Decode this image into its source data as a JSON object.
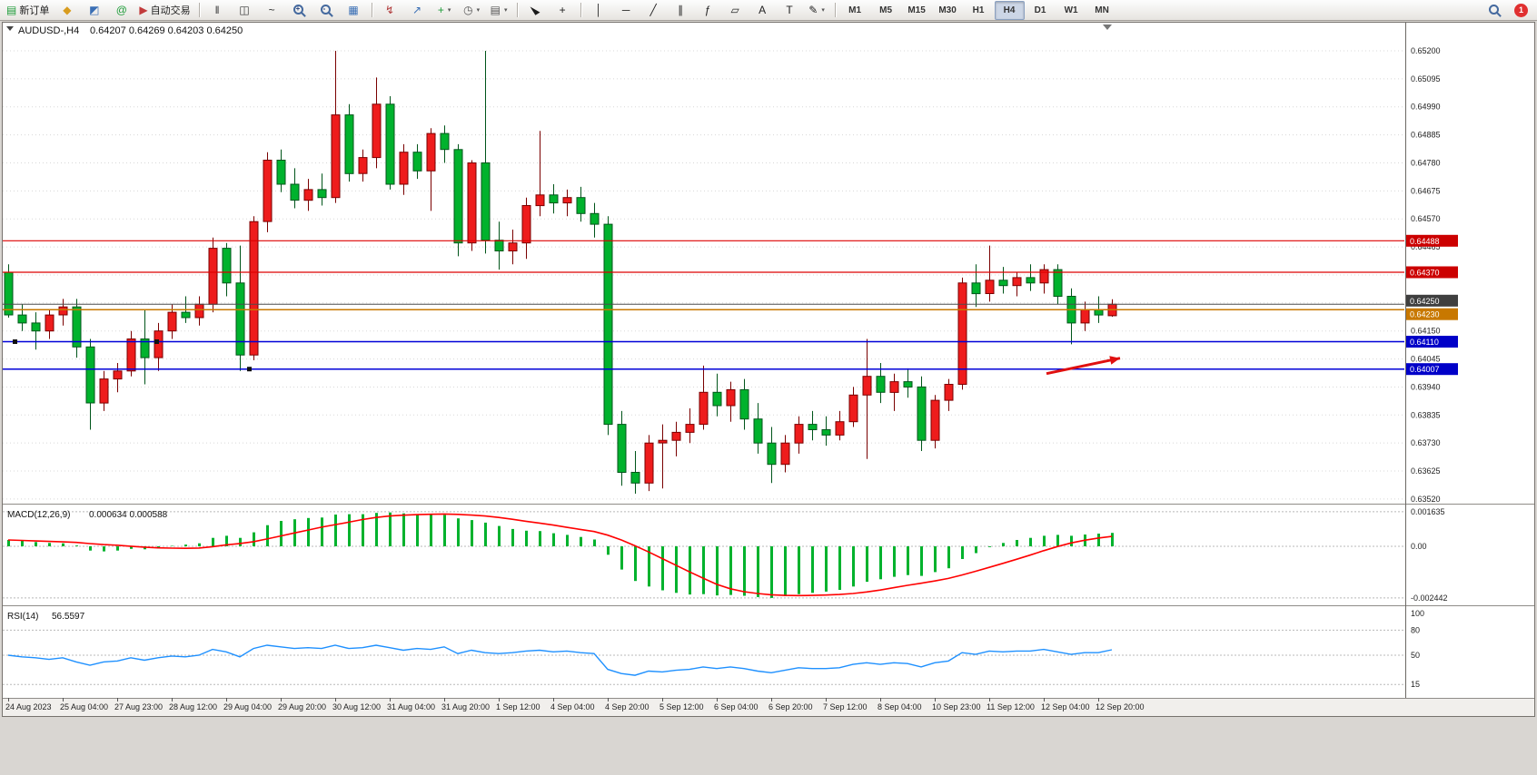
{
  "toolbar": {
    "dropdown_glyph": "▾",
    "groups": [
      {
        "items": [
          {
            "name": "new-order-button",
            "type": "labeled",
            "icon_name": "new-order-icon",
            "glyph": "▤",
            "glyph_color": "#1f9d3a",
            "label": "新订单"
          },
          {
            "name": "market-watch-icon",
            "type": "glyph",
            "glyph": "◆",
            "color": "#d89c1e"
          },
          {
            "name": "data-window-icon",
            "type": "glyph",
            "glyph": "◩",
            "color": "#3a6fb5"
          },
          {
            "name": "community-icon",
            "type": "glyph",
            "glyph": "@",
            "color": "#1f9d3a"
          },
          {
            "name": "autotrading-button",
            "type": "labeled",
            "icon_name": "autotrading-icon",
            "glyph": "▶",
            "glyph_color": "#c23b3b",
            "label": "自动交易"
          }
        ]
      },
      {
        "items": [
          {
            "name": "bar-chart-icon",
            "type": "glyph",
            "glyph": "‖",
            "color": "#333333"
          },
          {
            "name": "candlestick-chart-icon",
            "type": "glyph",
            "glyph": "◫",
            "color": "#333333"
          },
          {
            "name": "line-chart-icon",
            "type": "glyph",
            "glyph": "~",
            "color": "#333333"
          },
          {
            "name": "zoom-in-icon",
            "type": "mag",
            "badge": "+"
          },
          {
            "name": "zoom-out-icon",
            "type": "mag",
            "badge": "-"
          },
          {
            "name": "tile-windows-icon",
            "type": "glyph",
            "glyph": "▦",
            "color": "#3a6fb5"
          }
        ]
      },
      {
        "items": [
          {
            "name": "indicators-icon",
            "type": "glyph",
            "glyph": "↯",
            "color": "#b03a3a"
          },
          {
            "name": "objects-list-icon",
            "type": "glyph",
            "glyph": "↗",
            "color": "#3a6fb5"
          },
          {
            "name": "add-indicator-dropdown",
            "type": "glyph",
            "glyph": "+",
            "color": "#1f9d3a",
            "dropdown": true
          },
          {
            "name": "periods-dropdown",
            "type": "glyph",
            "glyph": "◷",
            "color": "#555555",
            "dropdown": true
          },
          {
            "name": "templates-dropdown",
            "type": "glyph",
            "glyph": "▤",
            "color": "#555555",
            "dropdown": true
          }
        ]
      },
      {
        "items": [
          {
            "name": "cursor-icon",
            "type": "cursor"
          },
          {
            "name": "crosshair-icon",
            "type": "glyph",
            "glyph": "+",
            "color": "#222222"
          }
        ]
      },
      {
        "items": [
          {
            "name": "vertical-line-icon",
            "type": "glyph",
            "glyph": "│",
            "color": "#222222"
          },
          {
            "name": "horizontal-line-icon",
            "type": "glyph",
            "glyph": "─",
            "color": "#222222"
          },
          {
            "name": "trendline-icon",
            "type": "glyph",
            "glyph": "╱",
            "color": "#222222"
          },
          {
            "name": "channel-icon",
            "type": "glyph",
            "glyph": "∥",
            "color": "#222222"
          },
          {
            "name": "fibonacci-icon",
            "type": "glyph",
            "glyph": "ƒ",
            "color": "#222222"
          },
          {
            "name": "shapes-icon",
            "type": "glyph",
            "glyph": "▱",
            "color": "#222222"
          },
          {
            "name": "text-icon",
            "type": "glyph",
            "glyph": "A",
            "color": "#222222"
          },
          {
            "name": "text-label-icon",
            "type": "glyph",
            "glyph": "T",
            "color": "#222222"
          },
          {
            "name": "arrows-tool-dropdown",
            "type": "glyph",
            "glyph": "✎",
            "color": "#222222",
            "dropdown": true
          }
        ]
      },
      {
        "items": [
          {
            "name": "tf-button-m1",
            "type": "tf",
            "label": "M1"
          },
          {
            "name": "tf-button-m5",
            "type": "tf",
            "label": "M5"
          },
          {
            "name": "tf-button-m15",
            "type": "tf",
            "label": "M15"
          },
          {
            "name": "tf-button-m30",
            "type": "tf",
            "label": "M30"
          },
          {
            "name": "tf-button-h1",
            "type": "tf",
            "label": "H1"
          },
          {
            "name": "tf-button-h4",
            "type": "tf",
            "label": "H4",
            "active": true
          },
          {
            "name": "tf-button-d1",
            "type": "tf",
            "label": "D1"
          },
          {
            "name": "tf-button-w1",
            "type": "tf",
            "label": "W1"
          },
          {
            "name": "tf-button-mn",
            "type": "tf",
            "label": "MN"
          }
        ]
      }
    ],
    "right": [
      {
        "name": "search-icon",
        "type": "mag",
        "badge": ""
      },
      {
        "name": "notifications-badge",
        "type": "badge",
        "label": "1",
        "bg": "#e03030"
      }
    ]
  },
  "chart_data": {
    "type": "candlestick",
    "symbol_period": "AUDUSD-,H4",
    "title_ohlc": "0.64207 0.64269 0.64203 0.64250",
    "ohlc_display": {
      "open": "0.64207",
      "high": "0.64269",
      "low": "0.64203",
      "close": "0.64250"
    },
    "price_axis_labels": [
      "0.65200",
      "0.65095",
      "0.64990",
      "0.64885",
      "0.64780",
      "0.64675",
      "0.64570",
      "0.64465",
      "0.64360",
      "0.64255",
      "0.64150",
      "0.64045",
      "0.63940",
      "0.63835",
      "0.63730",
      "0.63625",
      "0.63520"
    ],
    "time_labels": [
      "24 Aug 2023",
      "25 Aug 04:00",
      "27 Aug 23:00",
      "28 Aug 12:00",
      "29 Aug 04:00",
      "29 Aug 20:00",
      "30 Aug 12:00",
      "31 Aug 04:00",
      "31 Aug 20:00",
      "1 Sep 12:00",
      "4 Sep 04:00",
      "4 Sep 20:00",
      "5 Sep 12:00",
      "6 Sep 04:00",
      "6 Sep 20:00",
      "7 Sep 12:00",
      "8 Sep 04:00",
      "10 Sep 23:00",
      "11 Sep 12:00",
      "12 Sep 04:00",
      "12 Sep 20:00"
    ],
    "label_every_n_candles": 4,
    "candles_ohlc": [
      [
        0.6437,
        0.644,
        0.642,
        0.6421
      ],
      [
        0.6421,
        0.6425,
        0.6415,
        0.6418
      ],
      [
        0.6418,
        0.6422,
        0.6408,
        0.6415
      ],
      [
        0.6415,
        0.6423,
        0.6412,
        0.6421
      ],
      [
        0.6421,
        0.6427,
        0.6417,
        0.6424
      ],
      [
        0.6424,
        0.6427,
        0.6405,
        0.6409
      ],
      [
        0.6409,
        0.6412,
        0.6378,
        0.6388
      ],
      [
        0.6388,
        0.64,
        0.6385,
        0.6397
      ],
      [
        0.6397,
        0.6403,
        0.6392,
        0.64
      ],
      [
        0.64,
        0.6415,
        0.6398,
        0.6412
      ],
      [
        0.6412,
        0.6423,
        0.6395,
        0.6405
      ],
      [
        0.6405,
        0.6418,
        0.64,
        0.6415
      ],
      [
        0.6415,
        0.6425,
        0.6412,
        0.6422
      ],
      [
        0.6422,
        0.6428,
        0.6418,
        0.642
      ],
      [
        0.642,
        0.6428,
        0.6417,
        0.6425
      ],
      [
        0.6425,
        0.645,
        0.6422,
        0.6446
      ],
      [
        0.6446,
        0.6448,
        0.6428,
        0.6433
      ],
      [
        0.6433,
        0.6447,
        0.64,
        0.6406
      ],
      [
        0.6406,
        0.6458,
        0.6404,
        0.6456
      ],
      [
        0.6456,
        0.6482,
        0.6452,
        0.6479
      ],
      [
        0.6479,
        0.6483,
        0.6467,
        0.647
      ],
      [
        0.647,
        0.6476,
        0.6461,
        0.6464
      ],
      [
        0.6464,
        0.6472,
        0.646,
        0.6468
      ],
      [
        0.6468,
        0.6474,
        0.6462,
        0.6465
      ],
      [
        0.6465,
        0.652,
        0.6463,
        0.6496
      ],
      [
        0.6496,
        0.65,
        0.6471,
        0.6474
      ],
      [
        0.6474,
        0.6483,
        0.6471,
        0.648
      ],
      [
        0.648,
        0.651,
        0.6476,
        0.65
      ],
      [
        0.65,
        0.6503,
        0.6468,
        0.647
      ],
      [
        0.647,
        0.6485,
        0.6466,
        0.6482
      ],
      [
        0.6482,
        0.6485,
        0.6472,
        0.6475
      ],
      [
        0.6475,
        0.6491,
        0.646,
        0.6489
      ],
      [
        0.6489,
        0.6492,
        0.6478,
        0.6483
      ],
      [
        0.6483,
        0.6485,
        0.6443,
        0.6448
      ],
      [
        0.6448,
        0.6479,
        0.6445,
        0.6478
      ],
      [
        0.6478,
        0.652,
        0.6444,
        0.6449
      ],
      [
        0.6449,
        0.6456,
        0.6438,
        0.6445
      ],
      [
        0.6445,
        0.6453,
        0.644,
        0.6448
      ],
      [
        0.6448,
        0.6465,
        0.6442,
        0.6462
      ],
      [
        0.6462,
        0.649,
        0.6458,
        0.6466
      ],
      [
        0.6466,
        0.647,
        0.6459,
        0.6463
      ],
      [
        0.6463,
        0.6468,
        0.6458,
        0.6465
      ],
      [
        0.6465,
        0.6469,
        0.6456,
        0.6459
      ],
      [
        0.6459,
        0.6463,
        0.645,
        0.6455
      ],
      [
        0.6455,
        0.6458,
        0.6376,
        0.638
      ],
      [
        0.638,
        0.6385,
        0.6357,
        0.6362
      ],
      [
        0.6362,
        0.637,
        0.6354,
        0.6358
      ],
      [
        0.6358,
        0.6376,
        0.6355,
        0.6373
      ],
      [
        0.6373,
        0.638,
        0.6356,
        0.6374
      ],
      [
        0.6374,
        0.6381,
        0.6368,
        0.6377
      ],
      [
        0.6377,
        0.6386,
        0.6373,
        0.638
      ],
      [
        0.638,
        0.6402,
        0.6378,
        0.6392
      ],
      [
        0.6392,
        0.6399,
        0.6383,
        0.6387
      ],
      [
        0.6387,
        0.6396,
        0.6381,
        0.6393
      ],
      [
        0.6393,
        0.6397,
        0.6378,
        0.6382
      ],
      [
        0.6382,
        0.6388,
        0.6369,
        0.6373
      ],
      [
        0.6373,
        0.6379,
        0.6358,
        0.6365
      ],
      [
        0.6365,
        0.6376,
        0.6362,
        0.6373
      ],
      [
        0.6373,
        0.6383,
        0.6369,
        0.638
      ],
      [
        0.638,
        0.6385,
        0.6374,
        0.6378
      ],
      [
        0.6378,
        0.6383,
        0.6372,
        0.6376
      ],
      [
        0.6376,
        0.6385,
        0.6374,
        0.6381
      ],
      [
        0.6381,
        0.6394,
        0.6379,
        0.6391
      ],
      [
        0.6391,
        0.6412,
        0.6367,
        0.6398
      ],
      [
        0.6398,
        0.6403,
        0.6388,
        0.6392
      ],
      [
        0.6392,
        0.6399,
        0.6385,
        0.6396
      ],
      [
        0.6396,
        0.6401,
        0.639,
        0.6394
      ],
      [
        0.6394,
        0.6398,
        0.637,
        0.6374
      ],
      [
        0.6374,
        0.6391,
        0.6371,
        0.6389
      ],
      [
        0.6389,
        0.6397,
        0.6385,
        0.6395
      ],
      [
        0.6395,
        0.6435,
        0.6393,
        0.6433
      ],
      [
        0.6433,
        0.644,
        0.6424,
        0.6429
      ],
      [
        0.6429,
        0.6447,
        0.6426,
        0.6434
      ],
      [
        0.6434,
        0.6439,
        0.6429,
        0.6432
      ],
      [
        0.6432,
        0.6437,
        0.6428,
        0.6435
      ],
      [
        0.6435,
        0.644,
        0.643,
        0.6433
      ],
      [
        0.6433,
        0.644,
        0.6429,
        0.6438
      ],
      [
        0.6438,
        0.644,
        0.6425,
        0.6428
      ],
      [
        0.6428,
        0.6431,
        0.641,
        0.6418
      ],
      [
        0.6418,
        0.6426,
        0.6415,
        0.6423
      ],
      [
        0.6423,
        0.6428,
        0.6418,
        0.6421
      ],
      [
        0.64207,
        0.64269,
        0.64203,
        0.6425
      ]
    ],
    "colors": {
      "bull_fill": "#ee1c1c",
      "bull_stroke": "#7a0000",
      "bear_fill": "#00b22d",
      "bear_stroke": "#00551a",
      "macd_hist": "#00b22d",
      "macd_signal": "#ff0000",
      "rsi_line": "#1e90ff",
      "grid": "#d8d8d8",
      "resistance_line": "#dd0000",
      "support_line": "#0000d8",
      "trend_level_line": "#c87800",
      "bid_line": "#4d4d4d"
    },
    "hlines": [
      {
        "price": 0.64488,
        "color": "#dd0000",
        "width": 1.2,
        "box": "0.64488",
        "box_bg": "#cc0000",
        "box_dy": 0,
        "role": "resistance"
      },
      {
        "price": 0.6437,
        "color": "#dd0000",
        "width": 1.2,
        "box": "0.64370",
        "box_bg": "#cc0000",
        "box_dy": 0,
        "role": "resistance"
      },
      {
        "price": 0.6425,
        "color": "#4d4d4d",
        "width": 1,
        "box": "0.64250",
        "box_bg": "#3f3f3f",
        "box_dy": -4,
        "role": "bid"
      },
      {
        "price": 0.6423,
        "color": "#c87800",
        "width": 1.5,
        "box": "0.64230",
        "box_bg": "#c87800",
        "box_dy": 5,
        "role": "level"
      },
      {
        "price": 0.6411,
        "color": "#0000d8",
        "width": 1.5,
        "box": "0.64110",
        "box_bg": "#0000c8",
        "box_dy": 0,
        "role": "support",
        "handles": [
          14,
          170
        ]
      },
      {
        "price": 0.64007,
        "color": "#0000d8",
        "width": 1.5,
        "box": "0.64007",
        "box_bg": "#0000c8",
        "box_dy": 0,
        "role": "support",
        "handles": [
          272
        ]
      }
    ],
    "arrow": {
      "from_index": 76.2,
      "from_price": 0.6399,
      "to_index": 81.6,
      "to_price": 0.64048,
      "color": "#e01010"
    },
    "macd": {
      "label": "MACD(12,26,9)",
      "values_text": "0.000634 0.000588",
      "value_main": "0.000634",
      "value_signal": "0.000588",
      "axis": [
        {
          "v": 0.001635,
          "label": "0.001635"
        },
        {
          "v": 0,
          "label": "0.00"
        },
        {
          "v": -0.002442,
          "label": "-0.002442"
        }
      ],
      "hist": [
        0.0003,
        0.00026,
        0.0002,
        0.00016,
        0.00014,
        4e-05,
        -0.0002,
        -0.00024,
        -0.0002,
        -0.00012,
        -0.00014,
        -8e-05,
        2e-05,
        8e-05,
        0.00014,
        0.0004,
        0.0005,
        0.0004,
        0.00066,
        0.001,
        0.0012,
        0.00128,
        0.00134,
        0.00136,
        0.0015,
        0.00152,
        0.00152,
        0.00158,
        0.0016,
        0.00156,
        0.0015,
        0.0015,
        0.00148,
        0.00132,
        0.00124,
        0.00112,
        0.00096,
        0.00082,
        0.00074,
        0.00072,
        0.00062,
        0.00054,
        0.00044,
        0.00032,
        -0.0004,
        -0.0011,
        -0.00164,
        -0.0019,
        -0.00208,
        -0.0022,
        -0.00228,
        -0.00226,
        -0.00232,
        -0.0023,
        -0.00234,
        -0.0024,
        -0.00244,
        -0.00236,
        -0.00226,
        -0.0022,
        -0.00214,
        -0.00206,
        -0.0019,
        -0.00168,
        -0.00156,
        -0.00144,
        -0.00136,
        -0.0014,
        -0.00122,
        -0.00104,
        -0.0006,
        -0.00032,
        -4e-05,
        0.00016,
        0.0003,
        0.0004,
        0.0005,
        0.00054,
        0.0005,
        0.00056,
        0.0006,
        0.000634
      ]
    },
    "rsi": {
      "label": "RSI(14)",
      "value_text": "56.5597",
      "axis": [
        {
          "v": 100,
          "label": "100",
          "line": false
        },
        {
          "v": 80,
          "label": "80",
          "line": true
        },
        {
          "v": 50,
          "label": "50",
          "line": true
        },
        {
          "v": 15,
          "label": "15",
          "line": true
        }
      ],
      "values": [
        50,
        48,
        47,
        45,
        47,
        42,
        38,
        42,
        43,
        47,
        44,
        47,
        49,
        48,
        50,
        57,
        54,
        48,
        58,
        62,
        60,
        58,
        59,
        58,
        62,
        58,
        59,
        62,
        59,
        56,
        58,
        57,
        60,
        52,
        56,
        53,
        52,
        53,
        55,
        56,
        54,
        55,
        53,
        52,
        33,
        28,
        26,
        31,
        30,
        32,
        33,
        36,
        34,
        36,
        34,
        31,
        29,
        32,
        35,
        34,
        34,
        35,
        39,
        41,
        39,
        41,
        40,
        36,
        41,
        43,
        53,
        51,
        55,
        54,
        55,
        55,
        57,
        54,
        51,
        53,
        53,
        56.56
      ]
    }
  }
}
